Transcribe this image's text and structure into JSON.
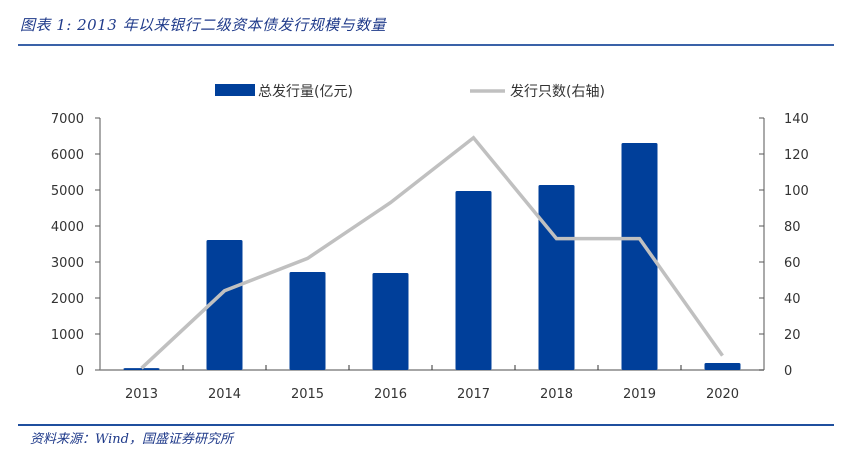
{
  "figure": {
    "title": "图表 1:  2013 年以来银行二级资本债发行规模与数量",
    "source": "资料来源：Wind，国盛证券研究所"
  },
  "chart_data": {
    "type": "bar+line",
    "categories": [
      "2013",
      "2014",
      "2015",
      "2016",
      "2017",
      "2018",
      "2019",
      "2020"
    ],
    "series": [
      {
        "name": "总发行量(亿元)",
        "type": "bar",
        "axis": "left",
        "color": "#003f9a",
        "values": [
          52,
          3611,
          2722,
          2694,
          4972,
          5139,
          6306,
          194
        ]
      },
      {
        "name": "发行只数(右轴)",
        "type": "line",
        "axis": "right",
        "color": "#c0c0c0",
        "values": [
          1,
          44,
          62,
          93,
          129,
          73,
          73,
          8
        ]
      }
    ],
    "left_axis": {
      "min": 0,
      "max": 7000,
      "ticks": [
        "0",
        "1000",
        "2000",
        "3000",
        "4000",
        "5000",
        "6000",
        "7000"
      ]
    },
    "right_axis": {
      "min": 0,
      "max": 140,
      "ticks": [
        "0",
        "20",
        "40",
        "60",
        "80",
        "100",
        "120",
        "140"
      ]
    },
    "legend_position": "top",
    "grid": false
  }
}
